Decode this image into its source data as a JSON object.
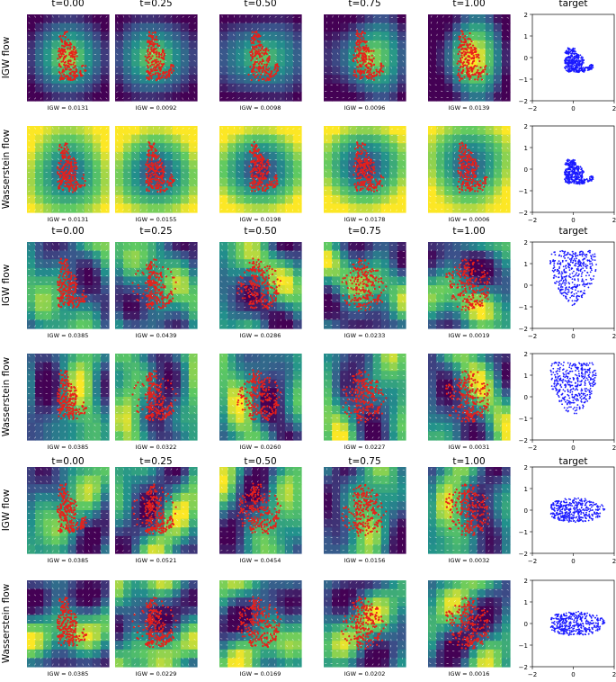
{
  "chart_data": {
    "type": "scatter",
    "column_titles": [
      "t=0.00",
      "t=0.25",
      "t=0.50",
      "t=0.75",
      "t=1.00",
      "target"
    ],
    "row_labels": [
      "IGW flow",
      "Wasserstein flow",
      "IGW flow",
      "Wasserstein flow",
      "IGW flow",
      "Wasserstein flow"
    ],
    "igw_values": [
      [
        "IGW = 0.0131",
        "IGW = 0.0092",
        "IGW = 0.0098",
        "IGW = 0.0096",
        "IGW = 0.0139"
      ],
      [
        "IGW = 0.0131",
        "IGW = 0.0155",
        "IGW = 0.0198",
        "IGW = 0.0178",
        "IGW = 0.0006"
      ],
      [
        "IGW = 0.0385",
        "IGW = 0.0439",
        "IGW = 0.0286",
        "IGW = 0.0233",
        "IGW = 0.0019"
      ],
      [
        "IGW = 0.0385",
        "IGW = 0.0322",
        "IGW = 0.0260",
        "IGW = 0.0227",
        "IGW = 0.0031"
      ],
      [
        "IGW = 0.0385",
        "IGW = 0.0521",
        "IGW = 0.0454",
        "IGW = 0.0156",
        "IGW = 0.0032"
      ],
      [
        "IGW = 0.0385",
        "IGW = 0.0229",
        "IGW = 0.0169",
        "IGW = 0.0202",
        "IGW = 0.0016"
      ]
    ],
    "target_shapes": [
      "cat",
      "cat",
      "heart",
      "heart",
      "ellipse",
      "ellipse"
    ],
    "target_axes": {
      "xlim": [
        -2,
        2
      ],
      "ylim": [
        -2,
        2
      ],
      "xticks": [
        "−2",
        "0",
        "2"
      ],
      "yticks": [
        "2",
        "1",
        "0",
        "−1",
        "−2"
      ]
    },
    "colors": {
      "particles": "#e8201a",
      "target": "#1a1aff",
      "arrows": "#ffffff",
      "colormap": [
        "#440154",
        "#3b528b",
        "#21918c",
        "#5ec962",
        "#fde725"
      ]
    }
  }
}
